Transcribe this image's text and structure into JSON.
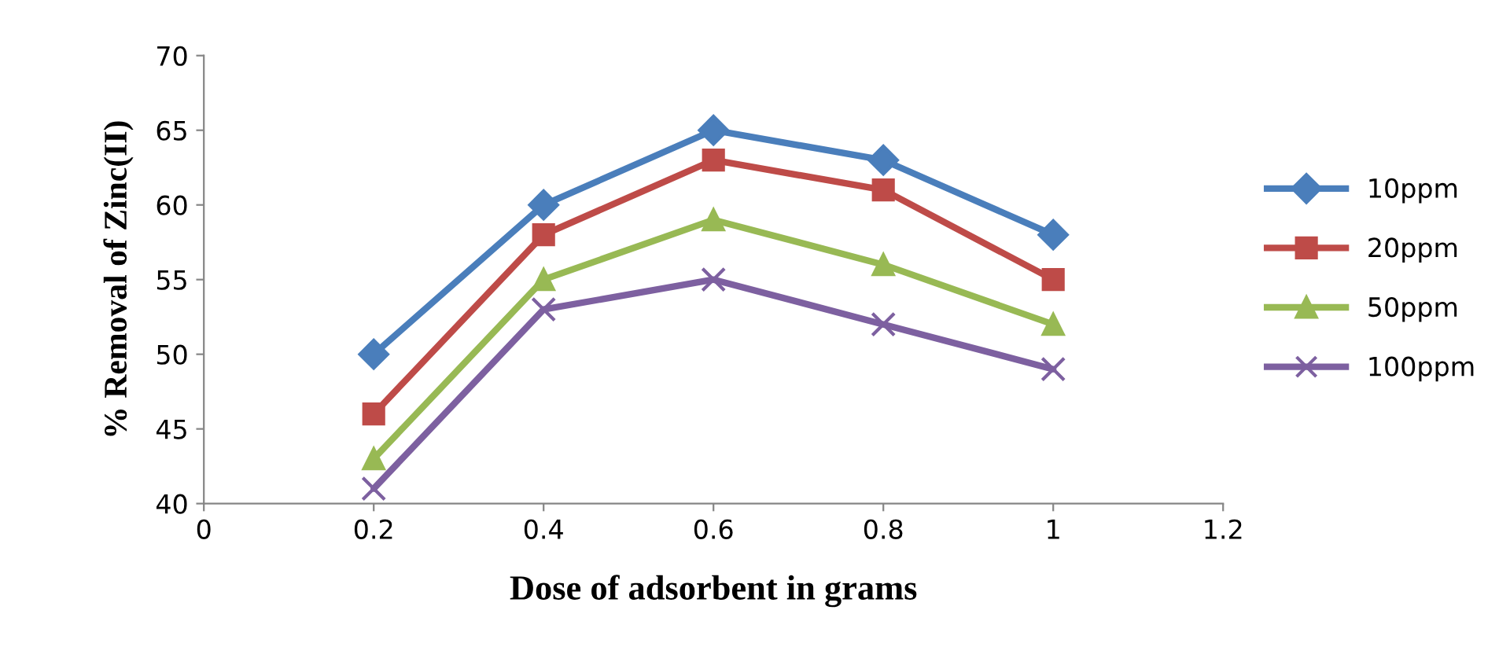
{
  "chart_data": {
    "type": "line",
    "xlabel": "Dose of adsorbent in grams",
    "ylabel": "% Removal of Zinc(II)",
    "x": [
      0.2,
      0.4,
      0.6,
      0.8,
      1
    ],
    "series": [
      {
        "name": "10ppm",
        "color": "#4a7ebb",
        "marker": "diamond",
        "values": [
          50,
          60,
          65,
          63,
          58
        ]
      },
      {
        "name": "20ppm",
        "color": "#be4b48",
        "marker": "square",
        "values": [
          46,
          58,
          63,
          61,
          55
        ]
      },
      {
        "name": "50ppm",
        "color": "#98b954",
        "marker": "triangle",
        "values": [
          43,
          55,
          59,
          56,
          52
        ]
      },
      {
        "name": "100ppm",
        "color": "#7d60a0",
        "marker": "cross",
        "values": [
          41,
          53,
          55,
          52,
          49
        ]
      }
    ],
    "xlim": [
      0,
      1.2
    ],
    "xticks": [
      0,
      0.2,
      0.4,
      0.6,
      0.8,
      1,
      1.2
    ],
    "ylim": [
      40,
      70
    ],
    "yticks": [
      40,
      45,
      50,
      55,
      60,
      65,
      70
    ],
    "grid": false,
    "legend": "right"
  }
}
